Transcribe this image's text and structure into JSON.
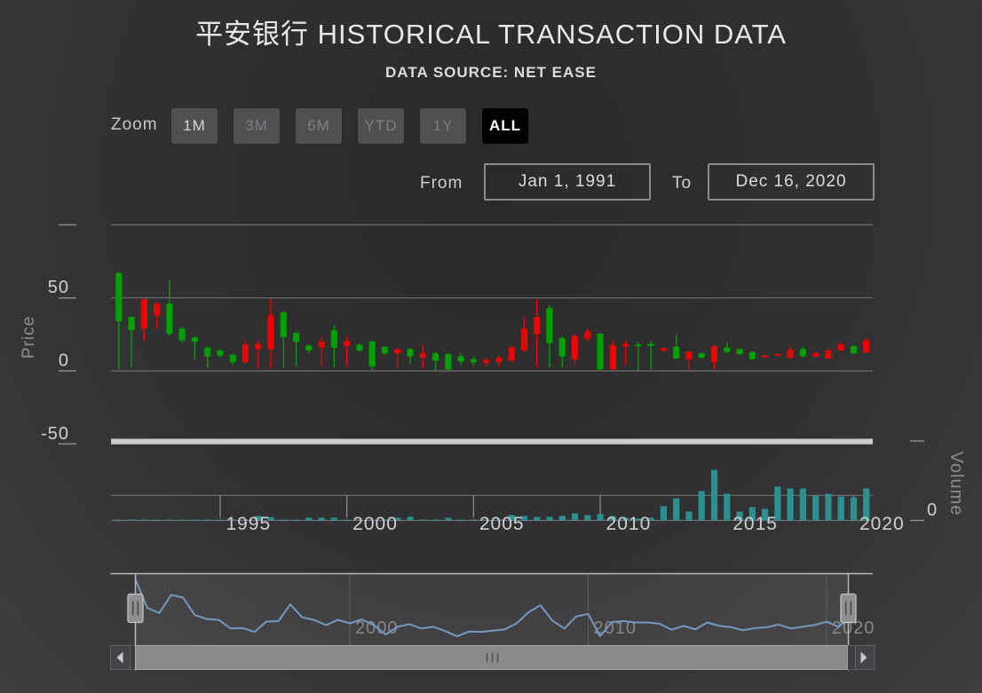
{
  "header": {
    "title": "平安银行 HISTORICAL TRANSACTION DATA",
    "subtitle": "DATA SOURCE: NET EASE"
  },
  "zoom": {
    "label": "Zoom",
    "buttons": [
      {
        "label": "1m",
        "tone": "bright"
      },
      {
        "label": "3m",
        "tone": "dim"
      },
      {
        "label": "6m",
        "tone": "dim"
      },
      {
        "label": "YTD",
        "tone": "dim"
      },
      {
        "label": "1y",
        "tone": "dim"
      },
      {
        "label": "All",
        "tone": "selected"
      }
    ],
    "selected": "All"
  },
  "range": {
    "from_label": "From",
    "from_value": "Jan 1, 1991",
    "to_label": "To",
    "to_value": "Dec 16, 2020"
  },
  "price_axis": {
    "title": "Price",
    "ticks": [
      {
        "value": 100,
        "label": ""
      },
      {
        "value": 50,
        "label": "50"
      },
      {
        "value": 0,
        "label": "0"
      },
      {
        "value": -50,
        "label": "-50"
      }
    ]
  },
  "volume_axis": {
    "title": "Volume",
    "zero_label": "0"
  },
  "x_axis": {
    "labels": [
      "1995",
      "2000",
      "2005",
      "2010",
      "2015",
      "2020"
    ]
  },
  "navigator": {
    "labels": [
      "2000",
      "2010",
      "2020"
    ]
  },
  "chart_data": {
    "type": "candlestick+column",
    "x_start": "1991-01",
    "x_interval_months": 6,
    "points": 60,
    "price_ylim": [
      -50,
      100
    ],
    "up_color_convention": "red = close above open, green = close below open",
    "ohlc": [
      [
        67,
        68,
        1.5,
        34
      ],
      [
        37,
        37.5,
        2,
        28
      ],
      [
        29,
        49.5,
        21,
        49
      ],
      [
        38,
        47.5,
        29,
        46
      ],
      [
        46,
        62,
        24,
        25.5
      ],
      [
        29,
        30,
        19,
        21
      ],
      [
        23,
        24,
        8,
        20
      ],
      [
        16,
        17,
        2,
        10
      ],
      [
        14,
        15,
        9,
        10.5
      ],
      [
        11,
        12,
        4,
        6
      ],
      [
        6,
        21,
        5,
        18
      ],
      [
        15,
        21,
        2,
        18.5
      ],
      [
        15,
        49.5,
        2,
        38
      ],
      [
        40,
        41,
        2,
        23
      ],
      [
        26,
        27,
        3,
        20
      ],
      [
        17.5,
        18,
        12,
        14
      ],
      [
        16,
        23,
        3,
        20
      ],
      [
        28,
        31,
        2,
        16
      ],
      [
        17,
        24,
        2.5,
        20.5
      ],
      [
        18,
        19,
        13,
        14
      ],
      [
        20,
        21,
        0.5,
        3
      ],
      [
        16.5,
        17,
        11,
        12
      ],
      [
        12,
        16,
        2,
        15
      ],
      [
        15,
        16,
        5,
        10
      ],
      [
        9,
        18,
        2,
        12
      ],
      [
        12,
        13,
        0.5,
        7
      ],
      [
        11.5,
        12,
        0.5,
        1
      ],
      [
        10,
        12,
        4,
        6.5
      ],
      [
        8,
        10,
        4,
        6
      ],
      [
        5.5,
        9,
        3,
        7.5
      ],
      [
        6,
        11,
        3,
        9
      ],
      [
        7,
        17,
        6,
        16
      ],
      [
        14,
        37,
        13,
        29
      ],
      [
        25,
        49,
        2.5,
        37
      ],
      [
        43,
        45,
        2.5,
        19
      ],
      [
        22.5,
        24,
        2.5,
        10
      ],
      [
        8,
        26,
        4,
        24
      ],
      [
        22,
        29,
        20,
        27
      ],
      [
        25.5,
        26,
        0.5,
        1
      ],
      [
        1,
        21,
        0.5,
        17.5
      ],
      [
        17,
        20.5,
        4,
        18.5
      ],
      [
        18,
        20,
        0.5,
        17
      ],
      [
        18.5,
        21,
        1,
        17
      ],
      [
        14,
        16,
        13,
        15.5
      ],
      [
        16.5,
        25,
        8,
        8.5
      ],
      [
        8,
        13.5,
        0.5,
        13
      ],
      [
        12,
        12.5,
        8.5,
        9
      ],
      [
        6,
        17.5,
        0.5,
        17
      ],
      [
        16,
        19.5,
        12,
        13
      ],
      [
        15,
        15.5,
        11,
        11.5
      ],
      [
        13,
        13.5,
        7.5,
        8
      ],
      [
        9.5,
        11,
        9,
        10.5
      ],
      [
        10.5,
        12,
        10,
        11.5
      ],
      [
        9,
        17,
        8.5,
        14.5
      ],
      [
        15,
        16.5,
        9.5,
        10
      ],
      [
        10,
        13.5,
        9,
        12
      ],
      [
        8.5,
        15.5,
        8,
        14
      ],
      [
        14,
        20,
        13.5,
        18
      ],
      [
        17,
        17.5,
        11.5,
        12
      ],
      [
        12.5,
        23,
        12,
        21
      ]
    ],
    "volume_rel": [
      0.5,
      0.5,
      0.5,
      0.5,
      0.5,
      0.5,
      0.5,
      0.5,
      0.5,
      0.5,
      0.5,
      5,
      3.5,
      1,
      1,
      3,
      3,
      3,
      1,
      1,
      1,
      1,
      3,
      4,
      1,
      1,
      3,
      1,
      1,
      1,
      1,
      6,
      5,
      4,
      4,
      5,
      8,
      6,
      7,
      5,
      3,
      2,
      3,
      16,
      25,
      10,
      33,
      57,
      30,
      10,
      15,
      13,
      38,
      36,
      36,
      28,
      30,
      27,
      26,
      36
    ],
    "volume_unit": "relative (no scale labels shown)"
  },
  "colors": {
    "up": "#ee0000",
    "down": "#00a000",
    "volume": "#2b908f",
    "navigator_line": "#7798bf",
    "grid": "#707073",
    "separator_bar": "#ccccce",
    "text_bright": "#d0d0d3",
    "text_dim": "#8d8d90",
    "button_bg": "#505053",
    "button_selected_bg": "#000002",
    "background_center": "#2a2a2b",
    "background_edge": "#3e3e40"
  }
}
